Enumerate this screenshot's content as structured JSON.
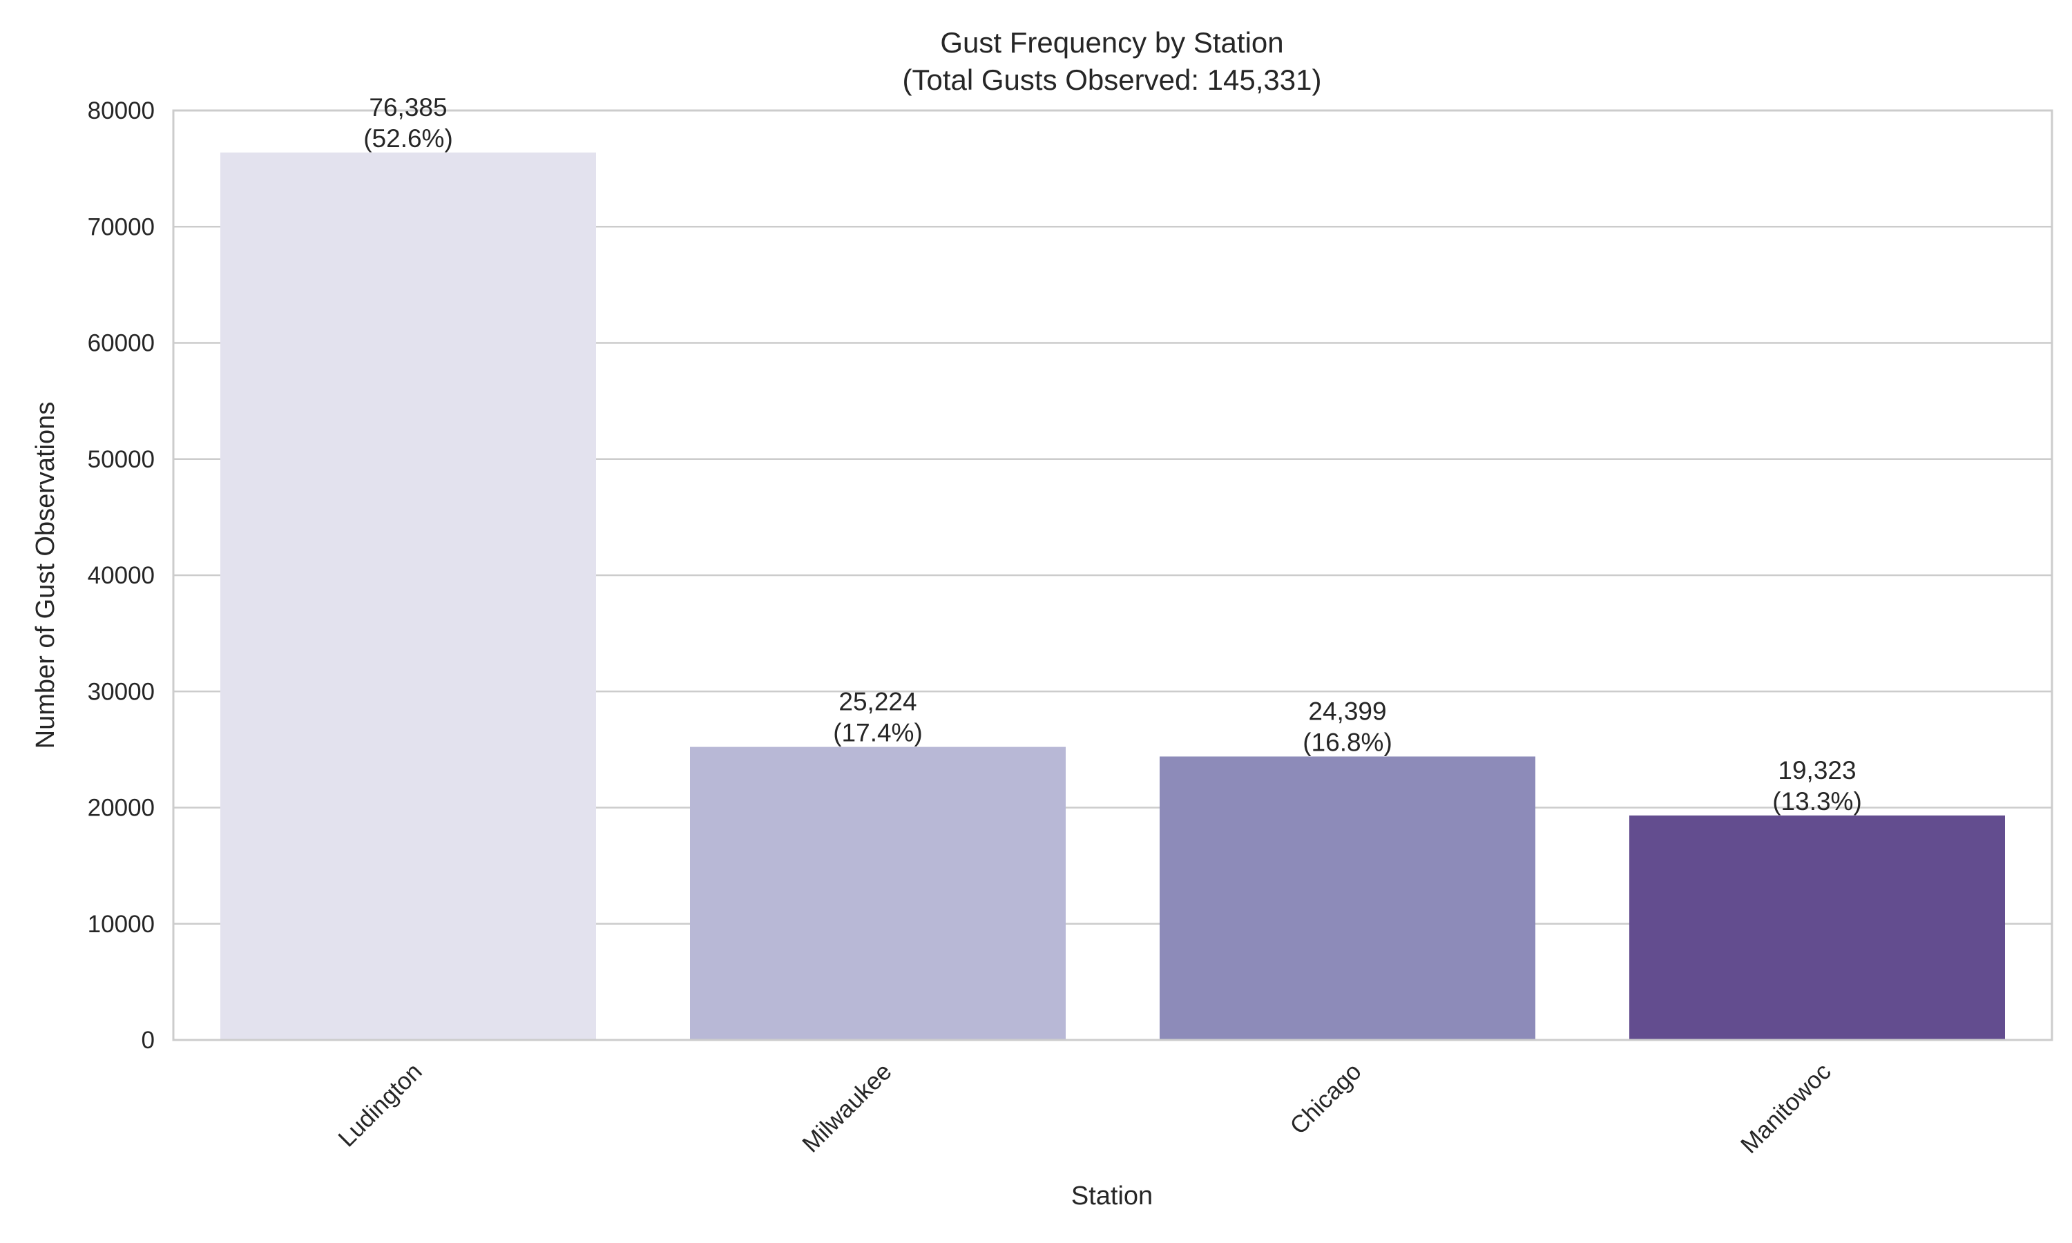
{
  "chart_data": {
    "type": "bar",
    "title_line1": "Gust Frequency by Station",
    "title_line2": "(Total Gusts Observed: 145,331)",
    "xlabel": "Station",
    "ylabel": "Number of Gust Observations",
    "categories": [
      "Ludington",
      "Milwaukee",
      "Chicago",
      "Manitowoc"
    ],
    "values": [
      76385,
      25224,
      24399,
      19323
    ],
    "value_labels": [
      "76,385",
      "25,224",
      "24,399",
      "19,323"
    ],
    "percent_labels": [
      "(52.6%)",
      "(17.4%)",
      "(16.8%)",
      "(13.3%)"
    ],
    "colors": [
      "#e3e2ee",
      "#b8b8d6",
      "#8d8bb9",
      "#634d8f"
    ],
    "ylim": [
      0,
      80000
    ],
    "yticks": [
      0,
      10000,
      20000,
      30000,
      40000,
      50000,
      60000,
      70000,
      80000
    ],
    "ytick_labels": [
      "0",
      "10000",
      "20000",
      "30000",
      "40000",
      "50000",
      "60000",
      "70000",
      "80000"
    ],
    "grid": "horizontal",
    "legend": "none"
  }
}
